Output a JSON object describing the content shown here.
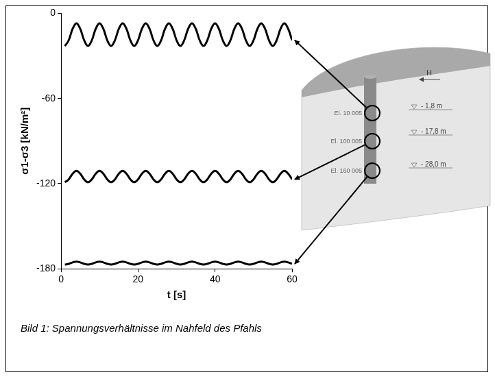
{
  "chart_data": {
    "type": "line",
    "x_label": "t [s]",
    "y_label": "σ1-σ3 [kN/m²]",
    "x": [
      1,
      2,
      3,
      4,
      5,
      6,
      7,
      8,
      9,
      10,
      11,
      12,
      13,
      14,
      15,
      16,
      17,
      18,
      19,
      20,
      21,
      22,
      23,
      24,
      25,
      26,
      27,
      28,
      29,
      30,
      31,
      32,
      33,
      34,
      35,
      36,
      37,
      38,
      39,
      40,
      41,
      42,
      43,
      44,
      45,
      46,
      47,
      48,
      49,
      50,
      51,
      52,
      53,
      54,
      55,
      56,
      57,
      58,
      59,
      60
    ],
    "series": [
      {
        "color": "#000000",
        "values": [
          -23,
          -19,
          -11,
          -7,
          -11,
          -19,
          -23,
          -19,
          -11,
          -7,
          -11,
          -19,
          -23,
          -19,
          -11,
          -7,
          -11,
          -19,
          -23,
          -19,
          -11,
          -7,
          -11,
          -19,
          -23,
          -19,
          -11,
          -7,
          -11,
          -19,
          -23,
          -19,
          -11,
          -7,
          -11,
          -19,
          -23,
          -19,
          -11,
          -7,
          -11,
          -19,
          -23,
          -19,
          -11,
          -7,
          -11,
          -19,
          -23,
          -19,
          -11,
          -7,
          -11,
          -19,
          -23,
          -19,
          -11,
          -7,
          -11,
          -19
        ]
      },
      {
        "color": "#000000",
        "values": [
          -119,
          -117,
          -113,
          -111,
          -113,
          -117,
          -119,
          -117,
          -113,
          -111,
          -113,
          -117,
          -119,
          -117,
          -113,
          -111,
          -113,
          -117,
          -119,
          -117,
          -113,
          -111,
          -113,
          -117,
          -119,
          -117,
          -113,
          -111,
          -113,
          -117,
          -119,
          -117,
          -113,
          -111,
          -113,
          -117,
          -119,
          -117,
          -113,
          -111,
          -113,
          -117,
          -119,
          -117,
          -113,
          -111,
          -113,
          -117,
          -119,
          -117,
          -113,
          -111,
          -113,
          -117,
          -119,
          -117,
          -113,
          -111,
          -113,
          -117
        ]
      },
      {
        "color": "#000000",
        "values": [
          -177,
          -176.5,
          -175.5,
          -175,
          -175.5,
          -176.5,
          -177,
          -176.5,
          -175.5,
          -175,
          -175.5,
          -176.5,
          -177,
          -176.5,
          -175.5,
          -175,
          -175.5,
          -176.5,
          -177,
          -176.5,
          -175.5,
          -175,
          -175.5,
          -176.5,
          -177,
          -176.5,
          -175.5,
          -175,
          -175.5,
          -176.5,
          -177,
          -176.5,
          -175.5,
          -175,
          -175.5,
          -176.5,
          -177,
          -176.5,
          -175.5,
          -175,
          -175.5,
          -176.5,
          -177,
          -176.5,
          -175.5,
          -175,
          -175.5,
          -176.5,
          -177,
          -176.5,
          -175.5,
          -175,
          -175.5,
          -176.5,
          -177,
          -176.5,
          -175.5,
          -175,
          -175.5,
          -176.5
        ]
      }
    ],
    "xlim": [
      0,
      60
    ],
    "ylim": [
      -180,
      0
    ],
    "xticks": [
      0,
      20,
      40,
      60
    ],
    "yticks": [
      -180,
      -120,
      -60,
      0
    ],
    "grid": false
  },
  "diagram": {
    "force_label": "H",
    "elements": [
      "El. 10 005",
      "El. 100 005",
      "El. 160 005"
    ],
    "depths": [
      "- 1,8 m",
      "- 17,8 m",
      "- 28,0 m"
    ]
  },
  "caption": "Bild 1: Spannungsverhältnisse im Nahfeld des Pfahls"
}
